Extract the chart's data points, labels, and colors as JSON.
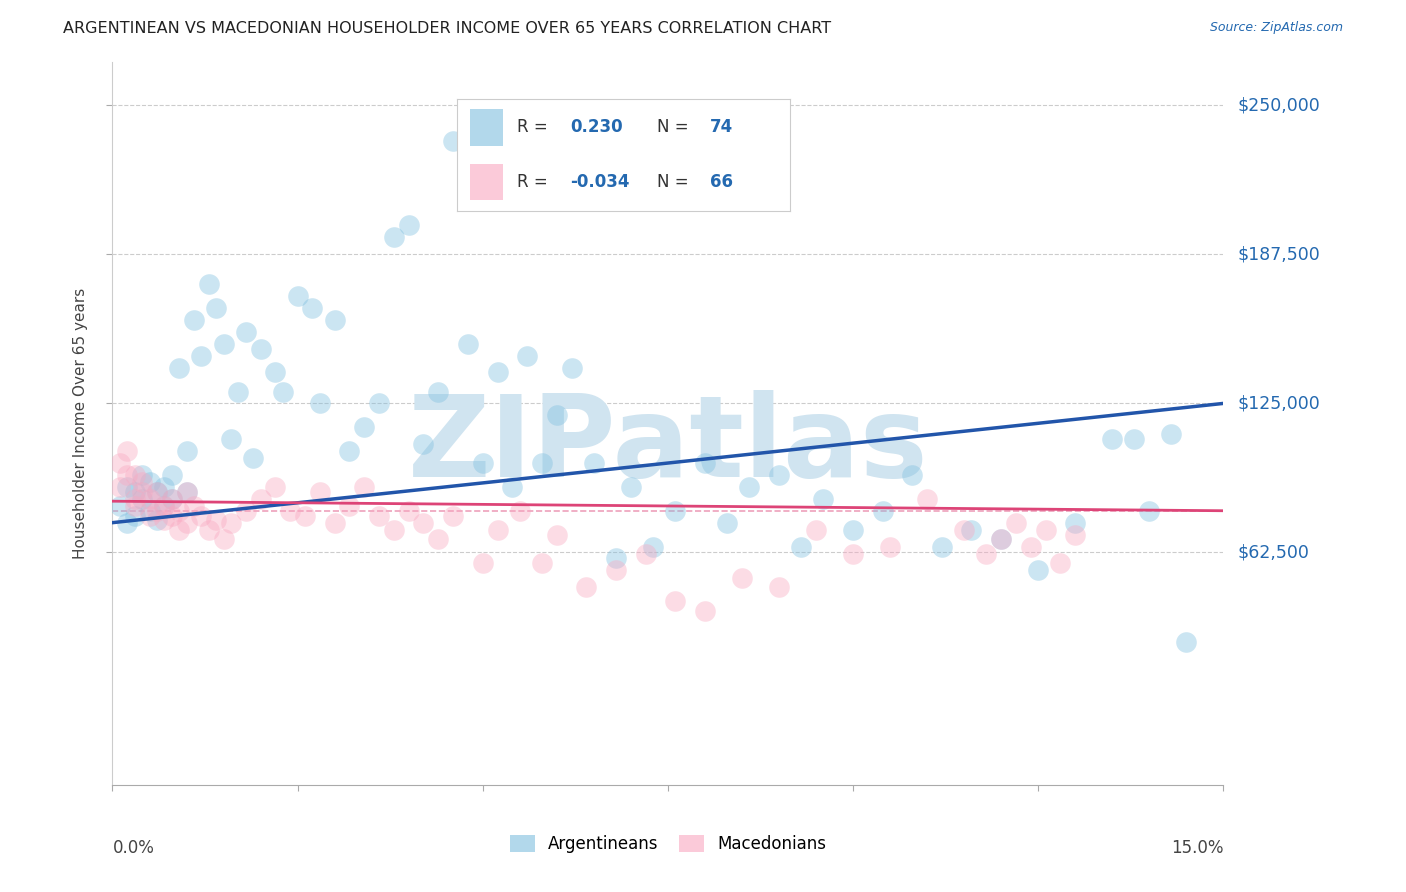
{
  "title": "ARGENTINEAN VS MACEDONIAN HOUSEHOLDER INCOME OVER 65 YEARS CORRELATION CHART",
  "source": "Source: ZipAtlas.com",
  "ylabel": "Householder Income Over 65 years",
  "yticks": [
    62500,
    125000,
    187500,
    250000
  ],
  "ytick_labels": [
    "$62,500",
    "$125,000",
    "$187,500",
    "$250,000"
  ],
  "xmin": 0.0,
  "xmax": 0.15,
  "ymin": -35000,
  "ymax": 268000,
  "blue_R": 0.23,
  "blue_N": 74,
  "pink_R": -0.034,
  "pink_N": 66,
  "blue_color": "#7fbfdf",
  "pink_color": "#f9a8c0",
  "blue_line_color": "#2255aa",
  "pink_line_color": "#dd4477",
  "watermark": "ZIPatlas",
  "watermark_color": "#d0e4f0",
  "legend_label_blue": "Argentineans",
  "legend_label_pink": "Macedonians",
  "blue_scatter_x": [
    0.001,
    0.002,
    0.002,
    0.003,
    0.003,
    0.004,
    0.004,
    0.005,
    0.005,
    0.006,
    0.006,
    0.007,
    0.007,
    0.008,
    0.008,
    0.009,
    0.01,
    0.01,
    0.011,
    0.012,
    0.013,
    0.014,
    0.015,
    0.016,
    0.017,
    0.018,
    0.019,
    0.02,
    0.022,
    0.023,
    0.025,
    0.027,
    0.028,
    0.03,
    0.032,
    0.034,
    0.036,
    0.038,
    0.04,
    0.042,
    0.044,
    0.046,
    0.048,
    0.05,
    0.052,
    0.054,
    0.056,
    0.058,
    0.06,
    0.062,
    0.065,
    0.068,
    0.07,
    0.073,
    0.076,
    0.08,
    0.083,
    0.086,
    0.09,
    0.093,
    0.096,
    0.1,
    0.104,
    0.108,
    0.112,
    0.116,
    0.12,
    0.125,
    0.13,
    0.135,
    0.138,
    0.14,
    0.143,
    0.145
  ],
  "blue_scatter_y": [
    82000,
    75000,
    90000,
    78000,
    88000,
    85000,
    95000,
    80000,
    92000,
    76000,
    88000,
    90000,
    82000,
    95000,
    85000,
    140000,
    105000,
    88000,
    160000,
    145000,
    175000,
    165000,
    150000,
    110000,
    130000,
    155000,
    102000,
    148000,
    138000,
    130000,
    170000,
    165000,
    125000,
    160000,
    105000,
    115000,
    125000,
    195000,
    200000,
    108000,
    130000,
    235000,
    150000,
    100000,
    138000,
    90000,
    145000,
    100000,
    120000,
    140000,
    100000,
    60000,
    90000,
    65000,
    80000,
    100000,
    75000,
    90000,
    95000,
    65000,
    85000,
    72000,
    80000,
    95000,
    65000,
    72000,
    68000,
    55000,
    75000,
    110000,
    110000,
    80000,
    112000,
    25000
  ],
  "pink_scatter_x": [
    0.001,
    0.001,
    0.002,
    0.002,
    0.003,
    0.003,
    0.003,
    0.004,
    0.004,
    0.005,
    0.005,
    0.006,
    0.006,
    0.007,
    0.007,
    0.008,
    0.008,
    0.009,
    0.009,
    0.01,
    0.01,
    0.011,
    0.012,
    0.013,
    0.014,
    0.015,
    0.016,
    0.018,
    0.02,
    0.022,
    0.024,
    0.026,
    0.028,
    0.03,
    0.032,
    0.034,
    0.036,
    0.038,
    0.04,
    0.042,
    0.044,
    0.046,
    0.05,
    0.052,
    0.055,
    0.058,
    0.06,
    0.064,
    0.068,
    0.072,
    0.076,
    0.08,
    0.085,
    0.09,
    0.095,
    0.1,
    0.105,
    0.11,
    0.115,
    0.118,
    0.12,
    0.122,
    0.124,
    0.126,
    0.128,
    0.13
  ],
  "pink_scatter_y": [
    100000,
    90000,
    95000,
    105000,
    85000,
    95000,
    82000,
    88000,
    92000,
    78000,
    85000,
    80000,
    88000,
    82000,
    76000,
    78000,
    85000,
    72000,
    80000,
    88000,
    75000,
    82000,
    78000,
    72000,
    76000,
    68000,
    75000,
    80000,
    85000,
    90000,
    80000,
    78000,
    88000,
    75000,
    82000,
    90000,
    78000,
    72000,
    80000,
    75000,
    68000,
    78000,
    58000,
    72000,
    80000,
    58000,
    70000,
    48000,
    55000,
    62000,
    42000,
    38000,
    52000,
    48000,
    72000,
    62000,
    65000,
    85000,
    72000,
    62000,
    68000,
    75000,
    65000,
    72000,
    58000,
    70000
  ]
}
